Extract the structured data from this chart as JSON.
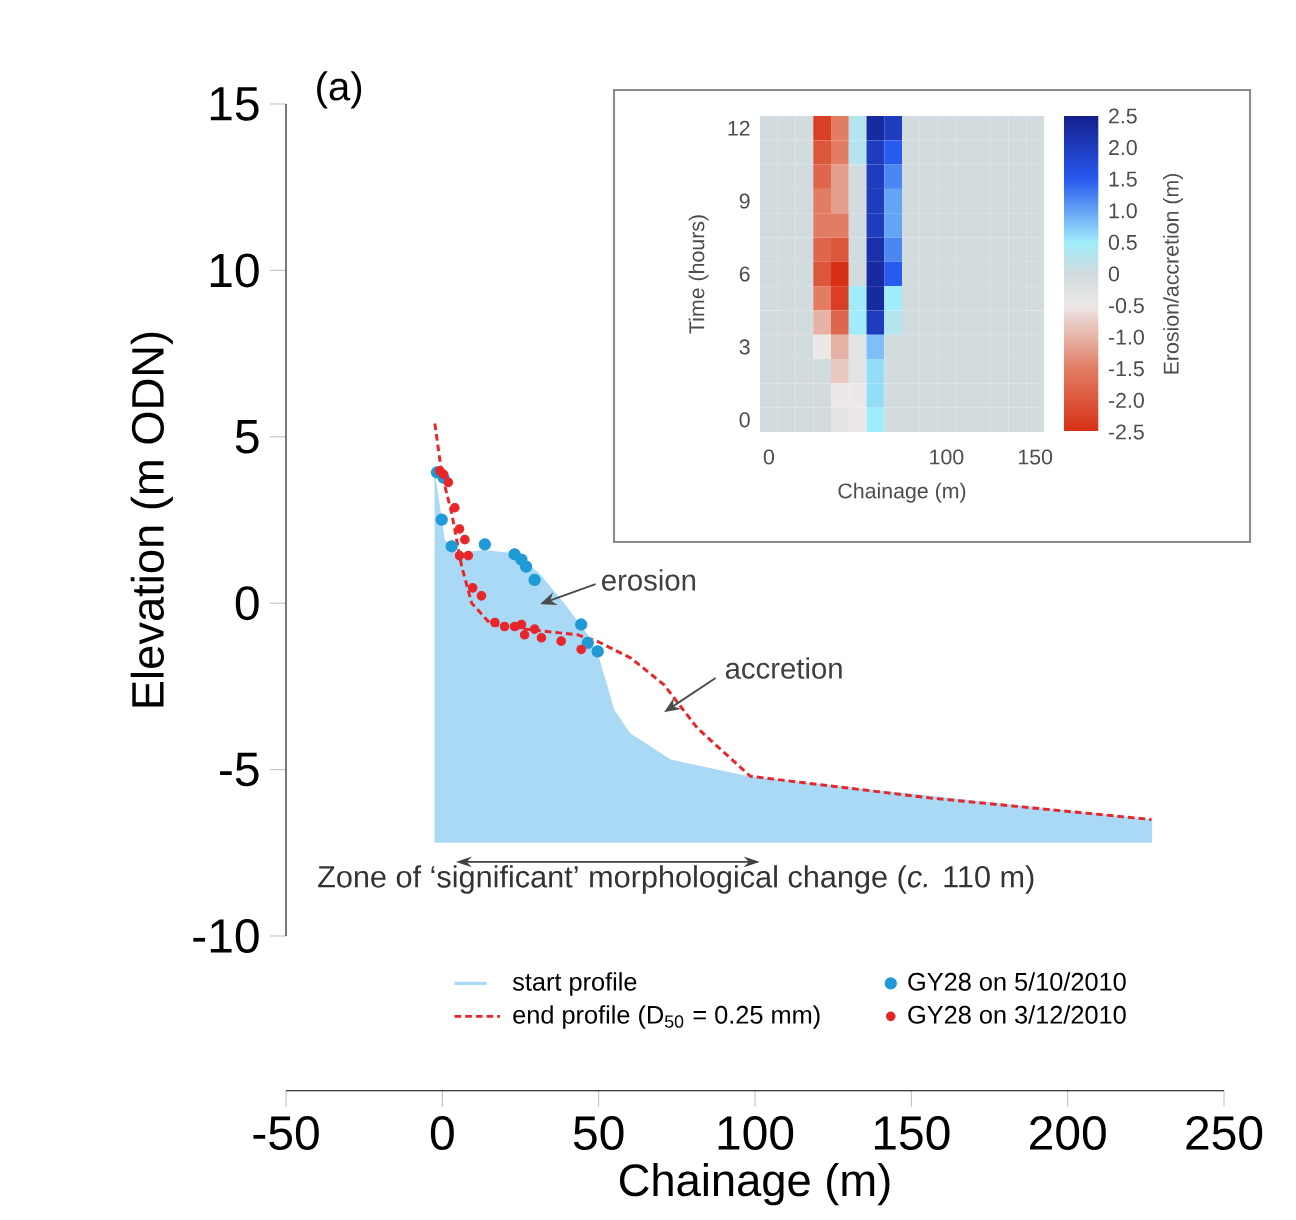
{
  "chart_data": [
    {
      "type": "line",
      "xlabel": "Chainage (m)",
      "ylabel": "Elevation (m ODN)",
      "xlim": [
        -50,
        250
      ],
      "xticks": [
        -50,
        0,
        50,
        100,
        150,
        200,
        250
      ],
      "ylim": [
        -10,
        15
      ],
      "yticks": [
        -10,
        -5,
        0,
        5,
        10,
        15
      ],
      "legend": "bottom",
      "annotations": [
        "(a)",
        "erosion",
        "accretion",
        "Zone of ‘significant’ morphological change (*c.* 110 m)"
      ],
      "series": [
        {
          "name": "start profile",
          "type": "area",
          "color": "#a9d9f5",
          "x": [
            -2.5,
            -2.5,
            0.8,
            5,
            13,
            23,
            31,
            39,
            46.5,
            50,
            55,
            60,
            73,
            98,
            227,
            227
          ],
          "values": [
            -7.2,
            4.0,
            1.9,
            1.5,
            1.6,
            1.5,
            0.9,
            0,
            -0.95,
            -1.6,
            -3.2,
            -3.9,
            -4.7,
            -5.2,
            -6.5,
            -7.2
          ]
        },
        {
          "name": "end profile (D$_{50}$ = 0.25 mm)",
          "type": "line",
          "line_style": "dashed",
          "color": "#e8262a",
          "x": [
            -2.4,
            -0.2,
            3,
            6.2,
            9.4,
            15.7,
            28.5,
            43.3,
            49.7,
            60.3,
            70.9,
            81.5,
            98.5,
            155.8,
            226.8
          ],
          "values": [
            5.4,
            3.9,
            2.7,
            1.1,
            0,
            -0.65,
            -0.8,
            -0.95,
            -1.15,
            -1.65,
            -2.45,
            -3.75,
            -5.2,
            -5.85,
            -6.5
          ]
        },
        {
          "name": "GY28 on 5/10/2010",
          "type": "scatter",
          "marker": "circle",
          "color": "#1f9ad6",
          "x": [
            -1.7,
            0.4,
            -0.2,
            3.0,
            13.6,
            23.1,
            25.3,
            26.8,
            29.5,
            44.4,
            46.5,
            49.7
          ],
          "values": [
            3.93,
            3.77,
            2.51,
            1.71,
            1.77,
            1.47,
            1.31,
            1.1,
            0.7,
            -0.64,
            -1.19,
            -1.45
          ]
        },
        {
          "name": "GY28 on 3/12/2010",
          "type": "scatter",
          "marker": "circle",
          "color": "#e8262a",
          "x": [
            -0.8,
            0.4,
            1.9,
            4.0,
            5.5,
            7.2,
            5.5,
            8.3,
            9.7,
            12.5,
            16.8,
            19.9,
            23.1,
            25.3,
            26.3,
            29.5,
            31.7,
            38.0,
            44.4
          ],
          "values": [
            3.98,
            3.87,
            3.63,
            2.87,
            2.23,
            1.91,
            1.43,
            1.43,
            0.46,
            0.22,
            -0.58,
            -0.7,
            -0.7,
            -0.64,
            -0.95,
            -0.78,
            -1.04,
            -1.14,
            -1.39
          ]
        }
      ]
    },
    {
      "type": "heatmap",
      "xlabel": "Chainage (m)",
      "ylabel": "Time (hours)",
      "clabel": "Erosion/accretion (m)",
      "clim": [
        -2.5,
        2.5
      ],
      "cticks": [
        2.5,
        {
          "value": 2,
          "label": "2.0"
        },
        1.5,
        {
          "value": 1,
          "label": "1.0"
        },
        0.5,
        0,
        -0.5,
        {
          "value": -1,
          "label": "-1.0"
        },
        -1.5,
        {
          "value": -2,
          "label": "-2.0"
        },
        -2.5
      ],
      "categories": [
        "0",
        null,
        null,
        null,
        null,
        null,
        null,
        null,
        null,
        null,
        "100",
        null,
        null,
        null,
        null,
        "150"
      ],
      "y_categories": [
        "12",
        null,
        null,
        "9",
        null,
        null,
        "6",
        null,
        null,
        "3",
        null,
        null,
        "0"
      ],
      "cells": [
        [
          0,
          0,
          0,
          -2.3,
          -1.5,
          0.3,
          2.3,
          2.0,
          0,
          0,
          0,
          0,
          0,
          0,
          0,
          0
        ],
        [
          0,
          0,
          0,
          -2.0,
          -1.5,
          0.3,
          2.0,
          1.5,
          0,
          0,
          0,
          0,
          0,
          0,
          0,
          0
        ],
        [
          0,
          0,
          0,
          -1.8,
          -1.2,
          0,
          2.0,
          1.2,
          0,
          0,
          0,
          0,
          0,
          0,
          0,
          0
        ],
        [
          0,
          0,
          0,
          -1.5,
          -1.2,
          0,
          2.0,
          1.0,
          0,
          0,
          0,
          0,
          0,
          0,
          0,
          0
        ],
        [
          0,
          0,
          0,
          -1.5,
          -1.5,
          0,
          2.0,
          1.0,
          0,
          0,
          0,
          0,
          0,
          0,
          0,
          0
        ],
        [
          0,
          0,
          0,
          -1.8,
          -2.0,
          0,
          2.2,
          1.2,
          0,
          0,
          0,
          0,
          0,
          0,
          0,
          0
        ],
        [
          0,
          0,
          0,
          -2.0,
          -2.5,
          0,
          2.3,
          1.5,
          0,
          0,
          0,
          0,
          0,
          0,
          0,
          0
        ],
        [
          0,
          0,
          0,
          -1.5,
          -2.3,
          0.5,
          2.3,
          0.5,
          0,
          0,
          0,
          0,
          0,
          0,
          0,
          0
        ],
        [
          0,
          0,
          0,
          -1.0,
          -1.8,
          0.5,
          2.0,
          0.3,
          0,
          0,
          0,
          0,
          0,
          0,
          0,
          0
        ],
        [
          0,
          0,
          0,
          -0.5,
          -1.0,
          -0.3,
          0.8,
          0,
          0,
          0,
          0,
          0,
          0,
          0,
          0,
          0
        ],
        [
          0,
          0,
          0,
          0,
          -0.8,
          -0.3,
          0.6,
          0,
          0,
          0,
          0,
          0,
          0,
          0,
          0,
          0
        ],
        [
          0,
          0,
          0,
          0,
          -0.5,
          -0.5,
          0.6,
          0,
          0,
          0,
          0,
          0,
          0,
          0,
          0,
          0
        ],
        [
          0,
          0,
          0,
          0,
          -0.3,
          -0.5,
          0.5,
          0,
          0,
          0,
          0,
          0,
          0,
          0,
          0,
          0
        ]
      ]
    }
  ]
}
